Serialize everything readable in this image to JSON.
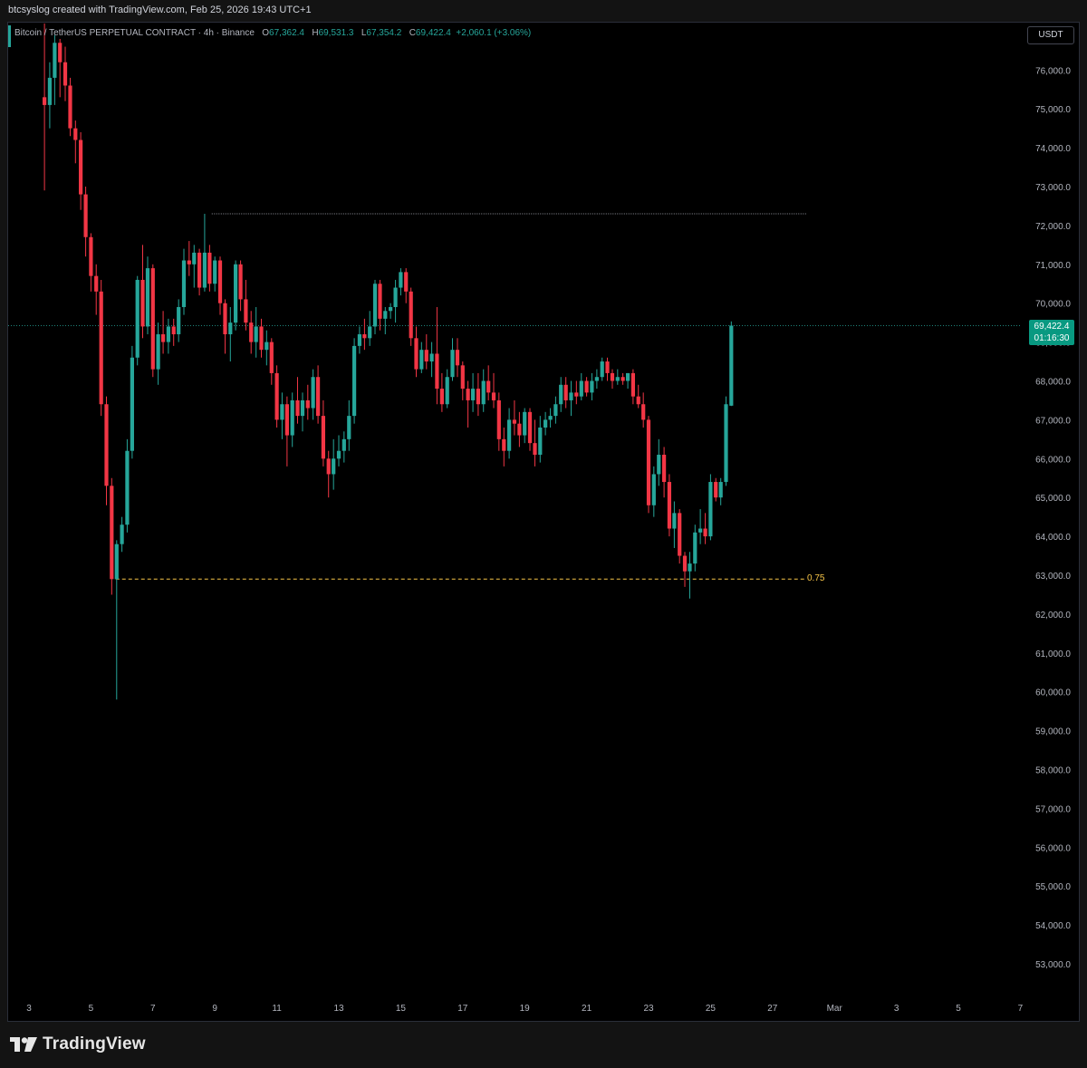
{
  "header": {
    "created_text": "btcsyslog created with TradingView.com, Feb 25, 2026 19:43 UTC+1"
  },
  "legend": {
    "symbol": "Bitcoin / TetherUS PERPETUAL CONTRACT · 4h · Binance",
    "open_key": "O",
    "open": "67,362.4",
    "high_key": "H",
    "high": "69,531.3",
    "low_key": "L",
    "low": "67,354.2",
    "close_key": "C",
    "close": "69,422.4",
    "change": "+2,060.1 (+3.06%)"
  },
  "currency_button": "USDT",
  "price_tag": {
    "price": "69,422.4",
    "countdown": "01:16:30"
  },
  "fib_label": "0.75",
  "brand": "TradingView",
  "colors": {
    "up": "#26a69a",
    "down": "#f23645",
    "fib_line": "#f7c548",
    "background": "#000000"
  },
  "chart_data": {
    "type": "candlestick",
    "timeframe": "4h",
    "yticks": [
      53000,
      54000,
      55000,
      56000,
      57000,
      58000,
      59000,
      60000,
      61000,
      62000,
      63000,
      64000,
      65000,
      66000,
      67000,
      68000,
      69000,
      70000,
      71000,
      72000,
      73000,
      74000,
      75000,
      76000
    ],
    "ytick_labels": [
      "53,000.0",
      "54,000.0",
      "55,000.0",
      "56,000.0",
      "57,000.0",
      "58,000.0",
      "59,000.0",
      "60,000.0",
      "61,000.0",
      "62,000.0",
      "63,000.0",
      "64,000.0",
      "65,000.0",
      "66,000.0",
      "67,000.0",
      "68,000.0",
      "69,000.0",
      "70,000.0",
      "71,000.0",
      "72,000.0",
      "73,000.0",
      "74,000.0",
      "75,000.0",
      "76,000.0"
    ],
    "ylim": [
      52500,
      77200
    ],
    "xlim": [
      2.9,
      7.2
    ],
    "xticks": [
      {
        "d": 3,
        "label": "3"
      },
      {
        "d": 5,
        "label": "5"
      },
      {
        "d": 7,
        "label": "7"
      },
      {
        "d": 9,
        "label": "9"
      },
      {
        "d": 11,
        "label": "11"
      },
      {
        "d": 13,
        "label": "13"
      },
      {
        "d": 15,
        "label": "15"
      },
      {
        "d": 17,
        "label": "17"
      },
      {
        "d": 19,
        "label": "19"
      },
      {
        "d": 21,
        "label": "21"
      },
      {
        "d": 23,
        "label": "23"
      },
      {
        "d": 25,
        "label": "25"
      },
      {
        "d": 27,
        "label": "27"
      },
      {
        "d": 29,
        "label": "Mar"
      },
      {
        "d": 31,
        "label": "3"
      },
      {
        "d": 33,
        "label": "5"
      },
      {
        "d": 35,
        "label": "7"
      }
    ],
    "last_price": 69422.4,
    "horizontal_lines": [
      {
        "type": "resistance",
        "price": 72300,
        "from": 8.9,
        "to": 28.1
      },
      {
        "type": "fib",
        "level": "0.75",
        "price": 62900,
        "from": 5.8,
        "to": 28.1
      }
    ],
    "candles": [
      {
        "t": 3.5,
        "o": 75300,
        "h": 77200,
        "l": 72900,
        "c": 75100
      },
      {
        "t": 3.67,
        "o": 75100,
        "h": 76200,
        "l": 74500,
        "c": 75800
      },
      {
        "t": 3.83,
        "o": 75800,
        "h": 76900,
        "l": 75100,
        "c": 76700
      },
      {
        "t": 4.0,
        "o": 76700,
        "h": 76800,
        "l": 75300,
        "c": 76200
      },
      {
        "t": 4.17,
        "o": 76200,
        "h": 76600,
        "l": 75200,
        "c": 75600
      },
      {
        "t": 4.33,
        "o": 75600,
        "h": 75800,
        "l": 74300,
        "c": 74500
      },
      {
        "t": 4.5,
        "o": 74500,
        "h": 74700,
        "l": 73600,
        "c": 74200
      },
      {
        "t": 4.67,
        "o": 74200,
        "h": 74400,
        "l": 72400,
        "c": 72800
      },
      {
        "t": 4.83,
        "o": 72800,
        "h": 73000,
        "l": 71200,
        "c": 71700
      },
      {
        "t": 5.0,
        "o": 71700,
        "h": 71800,
        "l": 70300,
        "c": 70700
      },
      {
        "t": 5.17,
        "o": 70700,
        "h": 71000,
        "l": 69700,
        "c": 70300
      },
      {
        "t": 5.33,
        "o": 70300,
        "h": 70600,
        "l": 67100,
        "c": 67400
      },
      {
        "t": 5.5,
        "o": 67400,
        "h": 67600,
        "l": 64800,
        "c": 65300
      },
      {
        "t": 5.67,
        "o": 65300,
        "h": 65500,
        "l": 62500,
        "c": 62900
      },
      {
        "t": 5.83,
        "o": 62900,
        "h": 63900,
        "l": 59800,
        "c": 63800
      },
      {
        "t": 6.0,
        "o": 63800,
        "h": 64500,
        "l": 63600,
        "c": 64300
      },
      {
        "t": 6.17,
        "o": 64300,
        "h": 66500,
        "l": 64100,
        "c": 66200
      },
      {
        "t": 6.33,
        "o": 66200,
        "h": 68900,
        "l": 66000,
        "c": 68600
      },
      {
        "t": 6.5,
        "o": 68600,
        "h": 70700,
        "l": 68400,
        "c": 70600
      },
      {
        "t": 6.67,
        "o": 70600,
        "h": 71500,
        "l": 69100,
        "c": 69400
      },
      {
        "t": 6.83,
        "o": 69400,
        "h": 71200,
        "l": 69200,
        "c": 70900
      },
      {
        "t": 7.0,
        "o": 70900,
        "h": 71000,
        "l": 68100,
        "c": 68300
      },
      {
        "t": 7.17,
        "o": 68300,
        "h": 69500,
        "l": 67900,
        "c": 69200
      },
      {
        "t": 7.33,
        "o": 69200,
        "h": 69800,
        "l": 68700,
        "c": 69000
      },
      {
        "t": 7.5,
        "o": 69000,
        "h": 69600,
        "l": 68700,
        "c": 69400
      },
      {
        "t": 7.67,
        "o": 69400,
        "h": 69600,
        "l": 68900,
        "c": 69200
      },
      {
        "t": 7.83,
        "o": 69200,
        "h": 70100,
        "l": 69000,
        "c": 69900
      },
      {
        "t": 8.0,
        "o": 69900,
        "h": 71400,
        "l": 69700,
        "c": 71100
      },
      {
        "t": 8.17,
        "o": 71100,
        "h": 71600,
        "l": 70700,
        "c": 71000
      },
      {
        "t": 8.33,
        "o": 71000,
        "h": 71500,
        "l": 70400,
        "c": 71300
      },
      {
        "t": 8.5,
        "o": 71300,
        "h": 71400,
        "l": 70200,
        "c": 70400
      },
      {
        "t": 8.67,
        "o": 70400,
        "h": 72300,
        "l": 70300,
        "c": 71300
      },
      {
        "t": 8.83,
        "o": 71300,
        "h": 71500,
        "l": 70300,
        "c": 70500
      },
      {
        "t": 9.0,
        "o": 70500,
        "h": 71200,
        "l": 70300,
        "c": 71100
      },
      {
        "t": 9.17,
        "o": 71100,
        "h": 71200,
        "l": 69700,
        "c": 70000
      },
      {
        "t": 9.33,
        "o": 70000,
        "h": 70100,
        "l": 68700,
        "c": 69200
      },
      {
        "t": 9.5,
        "o": 69200,
        "h": 69900,
        "l": 68500,
        "c": 69500
      },
      {
        "t": 9.67,
        "o": 69500,
        "h": 71100,
        "l": 69300,
        "c": 71000
      },
      {
        "t": 9.83,
        "o": 71000,
        "h": 71100,
        "l": 69800,
        "c": 70100
      },
      {
        "t": 10.0,
        "o": 70100,
        "h": 70600,
        "l": 69300,
        "c": 69500
      },
      {
        "t": 10.17,
        "o": 69500,
        "h": 69800,
        "l": 68700,
        "c": 69000
      },
      {
        "t": 10.33,
        "o": 69000,
        "h": 69900,
        "l": 68600,
        "c": 69400
      },
      {
        "t": 10.5,
        "o": 69400,
        "h": 69600,
        "l": 68600,
        "c": 68800
      },
      {
        "t": 10.67,
        "o": 68800,
        "h": 69300,
        "l": 68400,
        "c": 69000
      },
      {
        "t": 10.83,
        "o": 69000,
        "h": 69100,
        "l": 67900,
        "c": 68200
      },
      {
        "t": 11.0,
        "o": 68200,
        "h": 68400,
        "l": 66800,
        "c": 67000
      },
      {
        "t": 11.17,
        "o": 67000,
        "h": 67700,
        "l": 66500,
        "c": 67400
      },
      {
        "t": 11.33,
        "o": 67400,
        "h": 67600,
        "l": 65800,
        "c": 66600
      },
      {
        "t": 11.5,
        "o": 66600,
        "h": 67700,
        "l": 66300,
        "c": 67500
      },
      {
        "t": 11.67,
        "o": 67500,
        "h": 68100,
        "l": 66900,
        "c": 67100
      },
      {
        "t": 11.83,
        "o": 67100,
        "h": 67700,
        "l": 66700,
        "c": 67500
      },
      {
        "t": 12.0,
        "o": 67500,
        "h": 67900,
        "l": 67000,
        "c": 67300
      },
      {
        "t": 12.17,
        "o": 67300,
        "h": 68300,
        "l": 67000,
        "c": 68100
      },
      {
        "t": 12.33,
        "o": 68100,
        "h": 68400,
        "l": 66900,
        "c": 67100
      },
      {
        "t": 12.5,
        "o": 67100,
        "h": 67500,
        "l": 65800,
        "c": 66000
      },
      {
        "t": 12.67,
        "o": 66000,
        "h": 66200,
        "l": 65000,
        "c": 65600
      },
      {
        "t": 12.83,
        "o": 65600,
        "h": 66500,
        "l": 65200,
        "c": 66000
      },
      {
        "t": 13.0,
        "o": 66000,
        "h": 66600,
        "l": 65800,
        "c": 66200
      },
      {
        "t": 13.17,
        "o": 66200,
        "h": 66700,
        "l": 65900,
        "c": 66500
      },
      {
        "t": 13.33,
        "o": 66500,
        "h": 67500,
        "l": 66200,
        "c": 67100
      },
      {
        "t": 13.5,
        "o": 67100,
        "h": 69100,
        "l": 66900,
        "c": 68900
      },
      {
        "t": 13.67,
        "o": 68900,
        "h": 69400,
        "l": 68700,
        "c": 69200
      },
      {
        "t": 13.83,
        "o": 69200,
        "h": 69600,
        "l": 68800,
        "c": 69100
      },
      {
        "t": 14.0,
        "o": 69100,
        "h": 69800,
        "l": 68900,
        "c": 69400
      },
      {
        "t": 14.17,
        "o": 69400,
        "h": 70600,
        "l": 69200,
        "c": 70500
      },
      {
        "t": 14.33,
        "o": 70500,
        "h": 70600,
        "l": 69300,
        "c": 69600
      },
      {
        "t": 14.5,
        "o": 69600,
        "h": 69900,
        "l": 69200,
        "c": 69800
      },
      {
        "t": 14.67,
        "o": 69800,
        "h": 70000,
        "l": 69600,
        "c": 69900
      },
      {
        "t": 14.83,
        "o": 69900,
        "h": 70600,
        "l": 69500,
        "c": 70400
      },
      {
        "t": 15.0,
        "o": 70400,
        "h": 70900,
        "l": 70200,
        "c": 70800
      },
      {
        "t": 15.17,
        "o": 70800,
        "h": 70900,
        "l": 70000,
        "c": 70300
      },
      {
        "t": 15.33,
        "o": 70300,
        "h": 70400,
        "l": 68900,
        "c": 69100
      },
      {
        "t": 15.5,
        "o": 69100,
        "h": 69400,
        "l": 68100,
        "c": 68300
      },
      {
        "t": 15.67,
        "o": 68300,
        "h": 69000,
        "l": 68200,
        "c": 68800
      },
      {
        "t": 15.83,
        "o": 68800,
        "h": 69200,
        "l": 68300,
        "c": 68500
      },
      {
        "t": 16.0,
        "o": 68500,
        "h": 69000,
        "l": 68100,
        "c": 68700
      },
      {
        "t": 16.17,
        "o": 68700,
        "h": 69900,
        "l": 67400,
        "c": 67800
      },
      {
        "t": 16.33,
        "o": 67800,
        "h": 68200,
        "l": 67200,
        "c": 67400
      },
      {
        "t": 16.5,
        "o": 67400,
        "h": 68300,
        "l": 67300,
        "c": 68100
      },
      {
        "t": 16.67,
        "o": 68100,
        "h": 69100,
        "l": 68000,
        "c": 68800
      },
      {
        "t": 16.83,
        "o": 68800,
        "h": 69100,
        "l": 68100,
        "c": 68400
      },
      {
        "t": 17.0,
        "o": 68400,
        "h": 68500,
        "l": 67500,
        "c": 67800
      },
      {
        "t": 17.17,
        "o": 67800,
        "h": 68000,
        "l": 66800,
        "c": 67500
      },
      {
        "t": 17.33,
        "o": 67500,
        "h": 68200,
        "l": 67200,
        "c": 67800
      },
      {
        "t": 17.5,
        "o": 67800,
        "h": 68200,
        "l": 67100,
        "c": 67400
      },
      {
        "t": 17.67,
        "o": 67400,
        "h": 68300,
        "l": 67200,
        "c": 68000
      },
      {
        "t": 17.83,
        "o": 68000,
        "h": 68400,
        "l": 67500,
        "c": 67700
      },
      {
        "t": 18.0,
        "o": 67700,
        "h": 68200,
        "l": 67300,
        "c": 67500
      },
      {
        "t": 18.17,
        "o": 67500,
        "h": 67700,
        "l": 66200,
        "c": 66500
      },
      {
        "t": 18.33,
        "o": 66500,
        "h": 66800,
        "l": 65800,
        "c": 66200
      },
      {
        "t": 18.5,
        "o": 66200,
        "h": 67300,
        "l": 66000,
        "c": 67000
      },
      {
        "t": 18.67,
        "o": 67000,
        "h": 67500,
        "l": 66600,
        "c": 66900
      },
      {
        "t": 18.83,
        "o": 66900,
        "h": 67200,
        "l": 66300,
        "c": 66600
      },
      {
        "t": 19.0,
        "o": 66600,
        "h": 67300,
        "l": 66400,
        "c": 67200
      },
      {
        "t": 19.17,
        "o": 67200,
        "h": 67300,
        "l": 66200,
        "c": 66400
      },
      {
        "t": 19.33,
        "o": 66400,
        "h": 67000,
        "l": 65800,
        "c": 66100
      },
      {
        "t": 19.5,
        "o": 66100,
        "h": 67100,
        "l": 65900,
        "c": 66800
      },
      {
        "t": 19.67,
        "o": 66800,
        "h": 67200,
        "l": 66600,
        "c": 67000
      },
      {
        "t": 19.83,
        "o": 67000,
        "h": 67300,
        "l": 66800,
        "c": 67100
      },
      {
        "t": 20.0,
        "o": 67100,
        "h": 67600,
        "l": 66900,
        "c": 67400
      },
      {
        "t": 20.17,
        "o": 67400,
        "h": 68100,
        "l": 67200,
        "c": 67900
      },
      {
        "t": 20.33,
        "o": 67900,
        "h": 68100,
        "l": 67300,
        "c": 67500
      },
      {
        "t": 20.5,
        "o": 67500,
        "h": 68000,
        "l": 67100,
        "c": 67700
      },
      {
        "t": 20.67,
        "o": 67700,
        "h": 68000,
        "l": 67400,
        "c": 67600
      },
      {
        "t": 20.83,
        "o": 67600,
        "h": 68200,
        "l": 67500,
        "c": 68000
      },
      {
        "t": 21.0,
        "o": 68000,
        "h": 68100,
        "l": 67600,
        "c": 67700
      },
      {
        "t": 21.17,
        "o": 67700,
        "h": 68200,
        "l": 67500,
        "c": 68000
      },
      {
        "t": 21.33,
        "o": 68000,
        "h": 68300,
        "l": 67800,
        "c": 68100
      },
      {
        "t": 21.5,
        "o": 68100,
        "h": 68600,
        "l": 68000,
        "c": 68500
      },
      {
        "t": 21.67,
        "o": 68500,
        "h": 68600,
        "l": 68000,
        "c": 68200
      },
      {
        "t": 21.83,
        "o": 68200,
        "h": 68300,
        "l": 67800,
        "c": 68000
      },
      {
        "t": 22.0,
        "o": 68000,
        "h": 68300,
        "l": 67900,
        "c": 68100
      },
      {
        "t": 22.17,
        "o": 68100,
        "h": 68200,
        "l": 67900,
        "c": 68000
      },
      {
        "t": 22.33,
        "o": 68000,
        "h": 68200,
        "l": 67800,
        "c": 68200
      },
      {
        "t": 22.5,
        "o": 68200,
        "h": 68300,
        "l": 67400,
        "c": 67600
      },
      {
        "t": 22.67,
        "o": 67600,
        "h": 67900,
        "l": 67300,
        "c": 67400
      },
      {
        "t": 22.83,
        "o": 67400,
        "h": 67700,
        "l": 66800,
        "c": 67000
      },
      {
        "t": 23.0,
        "o": 67000,
        "h": 67100,
        "l": 64600,
        "c": 64800
      },
      {
        "t": 23.17,
        "o": 64800,
        "h": 65800,
        "l": 64500,
        "c": 65600
      },
      {
        "t": 23.33,
        "o": 65600,
        "h": 66500,
        "l": 65300,
        "c": 66100
      },
      {
        "t": 23.5,
        "o": 66100,
        "h": 66300,
        "l": 65000,
        "c": 65400
      },
      {
        "t": 23.67,
        "o": 65400,
        "h": 65600,
        "l": 64000,
        "c": 64200
      },
      {
        "t": 23.83,
        "o": 64200,
        "h": 64900,
        "l": 63700,
        "c": 64600
      },
      {
        "t": 24.0,
        "o": 64600,
        "h": 64700,
        "l": 63300,
        "c": 63500
      },
      {
        "t": 24.17,
        "o": 63500,
        "h": 63600,
        "l": 62700,
        "c": 63100
      },
      {
        "t": 24.33,
        "o": 63100,
        "h": 63600,
        "l": 62400,
        "c": 63300
      },
      {
        "t": 24.5,
        "o": 63300,
        "h": 64300,
        "l": 63100,
        "c": 64100
      },
      {
        "t": 24.67,
        "o": 64100,
        "h": 64700,
        "l": 63800,
        "c": 64200
      },
      {
        "t": 24.83,
        "o": 64200,
        "h": 64600,
        "l": 63800,
        "c": 64000
      },
      {
        "t": 25.0,
        "o": 64000,
        "h": 65600,
        "l": 63900,
        "c": 65400
      },
      {
        "t": 25.17,
        "o": 65400,
        "h": 65500,
        "l": 64900,
        "c": 65000
      },
      {
        "t": 25.33,
        "o": 65000,
        "h": 65500,
        "l": 64800,
        "c": 65400
      },
      {
        "t": 25.5,
        "o": 65400,
        "h": 67600,
        "l": 65300,
        "c": 67400
      },
      {
        "t": 25.67,
        "o": 67362.4,
        "h": 69531.3,
        "l": 67354.2,
        "c": 69422.4
      }
    ]
  }
}
